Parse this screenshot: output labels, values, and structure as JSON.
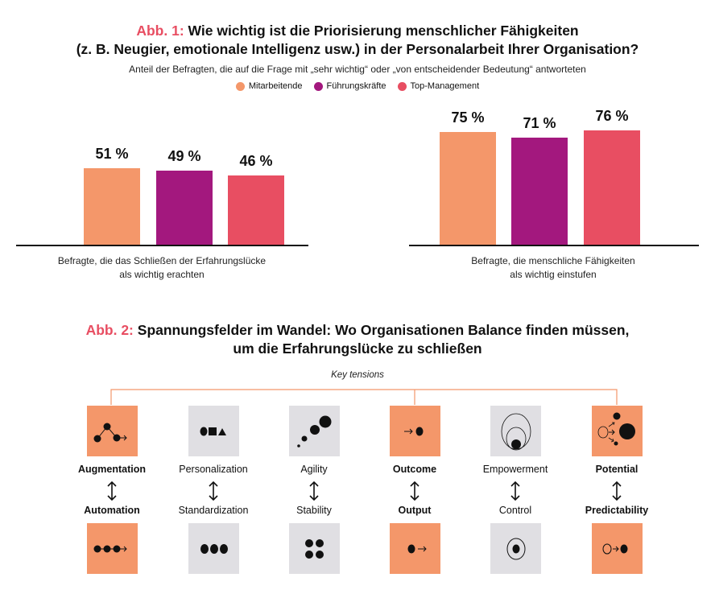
{
  "fig1": {
    "prefix": "Abb. 1:",
    "title_line1": "Wie wichtig ist die Priorisierung menschlicher Fähigkeiten",
    "title_line2": "(z. B. Neugier, emotionale Intelligenz usw.) in der Personalarbeit Ihrer Organisation?",
    "subtitle": "Anteil der Befragten, die auf die Frage mit „sehr wichtig“ oder „von entscheidender Bedeutung“ antworteten"
  },
  "chart_data": {
    "type": "bar",
    "categories": [
      "Befragte, die das Schließen der Erfahrungslücke als wichtig erachten",
      "Befragte, die menschliche Fähigkeiten als wichtig einstufen"
    ],
    "category_lines": [
      [
        "Befragte, die das Schließen der Erfahrungslücke",
        "als wichtig erachten"
      ],
      [
        "Befragte, die menschliche Fähigkeiten",
        "als wichtig einstufen"
      ]
    ],
    "series": [
      {
        "name": "Mitarbeitende",
        "color": "#F4976A",
        "values": [
          51,
          75
        ],
        "labels": [
          "51 %",
          "75 %"
        ]
      },
      {
        "name": "Führungskräfte",
        "color": "#A3187E",
        "values": [
          49,
          71
        ],
        "labels": [
          "49 %",
          "71 %"
        ]
      },
      {
        "name": "Top-Management",
        "color": "#E84E62",
        "values": [
          46,
          76
        ],
        "labels": [
          "46 %",
          "76 %"
        ]
      }
    ],
    "unit": "%",
    "ylim": [
      0,
      100
    ],
    "grid": false,
    "legend": "top-center"
  },
  "fig2": {
    "prefix": "Abb. 2:",
    "title_line1": "Spannungsfelder im Wandel: Wo Organisationen Balance finden müssen,",
    "title_line2": "um die Erfahrungslücke zu schließen",
    "key_label": "Key tensions",
    "pairs": [
      {
        "top": "Augmentation",
        "bottom": "Automation",
        "highlight": true,
        "top_icon": "connected-dots-icon",
        "bottom_icon": "chain-dots-arrow-icon"
      },
      {
        "top": "Personalization",
        "bottom": "Standardization",
        "highlight": false,
        "top_icon": "circle-square-triangle-icon",
        "bottom_icon": "three-dots-icon"
      },
      {
        "top": "Agility",
        "bottom": "Stability",
        "highlight": false,
        "top_icon": "growing-dots-icon",
        "bottom_icon": "four-dots-icon"
      },
      {
        "top": "Outcome",
        "bottom": "Output",
        "highlight": true,
        "top_icon": "arrow-to-dot-icon",
        "bottom_icon": "dot-to-arrow-icon"
      },
      {
        "top": "Empowerment",
        "bottom": "Control",
        "highlight": false,
        "top_icon": "expanding-circles-icon",
        "bottom_icon": "target-circle-icon"
      },
      {
        "top": "Potential",
        "bottom": "Predictability",
        "highlight": true,
        "top_icon": "branching-potential-icon",
        "bottom_icon": "circle-arrow-dot-icon"
      }
    ],
    "colors": {
      "highlight": "#F4976A",
      "neutral": "#E0DFE3",
      "connector": "#F4976A"
    }
  }
}
